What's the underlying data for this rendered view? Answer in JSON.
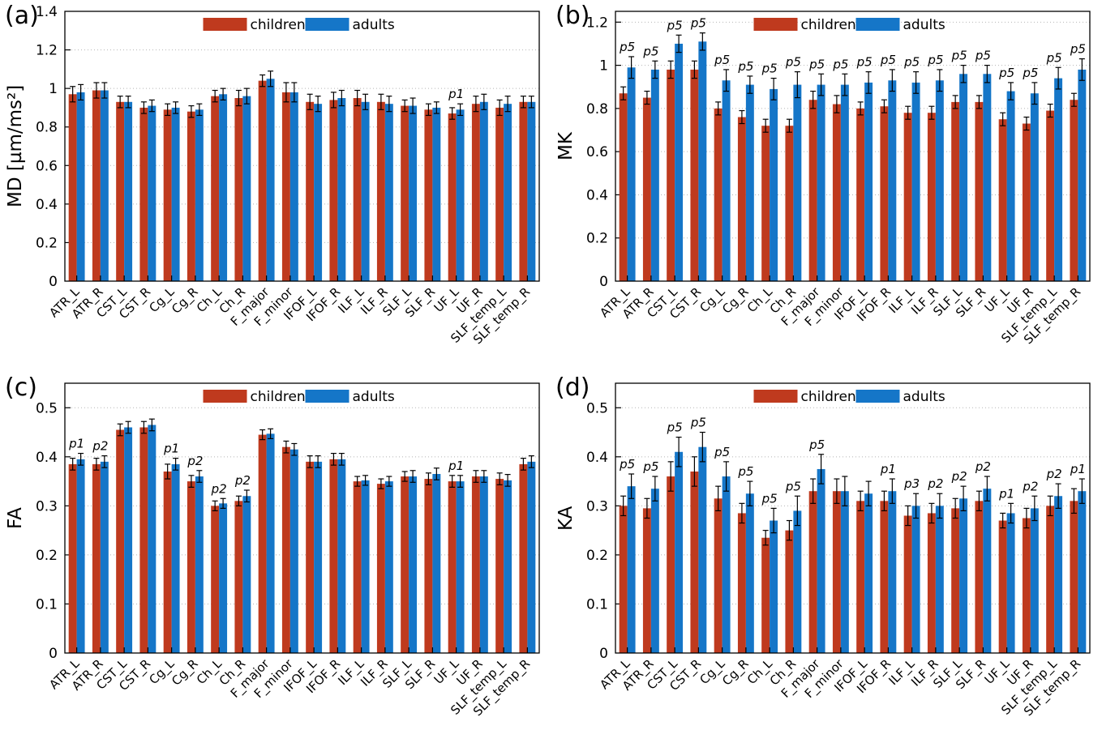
{
  "legend": {
    "children_label": "children",
    "adults_label": "adults"
  },
  "colors": {
    "children": "#bf3a1e",
    "adults": "#1576c8",
    "grid": "#b5b5b5",
    "axis": "#000000"
  },
  "categories": [
    "ATR_L",
    "ATR_R",
    "CST_L",
    "CST_R",
    "Cg_L",
    "Cg_R",
    "Ch_L",
    "Ch_R",
    "F_major",
    "F_minor",
    "IFOF_L",
    "IFOF_R",
    "ILF_L",
    "ILF_R",
    "SLF_L",
    "SLF_R",
    "UF_L",
    "UF_R",
    "SLF_temp_L",
    "SLF_temp_R"
  ],
  "chart_data": [
    {
      "id": "a",
      "panel_label": "(a)",
      "type": "bar",
      "ylabel": "MD [µm/ms²]",
      "xlabel": "",
      "ylim": [
        0,
        1.4
      ],
      "yticks": [
        0,
        0.2,
        0.4,
        0.6,
        0.8,
        1,
        1.2,
        1.4
      ],
      "grid": "dotted-horizontal",
      "legend_position": "top-center-inside",
      "series": [
        {
          "name": "children",
          "values": [
            0.97,
            0.99,
            0.93,
            0.9,
            0.89,
            0.88,
            0.96,
            0.95,
            1.04,
            0.98,
            0.93,
            0.94,
            0.95,
            0.93,
            0.91,
            0.89,
            0.87,
            0.92,
            0.9,
            0.93
          ],
          "errors": [
            0.04,
            0.04,
            0.03,
            0.03,
            0.03,
            0.03,
            0.03,
            0.04,
            0.03,
            0.05,
            0.04,
            0.04,
            0.04,
            0.04,
            0.03,
            0.03,
            0.03,
            0.04,
            0.04,
            0.03
          ]
        },
        {
          "name": "adults",
          "values": [
            0.98,
            0.99,
            0.93,
            0.91,
            0.9,
            0.89,
            0.97,
            0.96,
            1.05,
            0.98,
            0.92,
            0.95,
            0.93,
            0.92,
            0.91,
            0.9,
            0.89,
            0.93,
            0.92,
            0.93
          ],
          "errors": [
            0.04,
            0.04,
            0.03,
            0.03,
            0.03,
            0.03,
            0.03,
            0.04,
            0.04,
            0.05,
            0.04,
            0.04,
            0.04,
            0.04,
            0.04,
            0.03,
            0.03,
            0.04,
            0.04,
            0.03
          ]
        }
      ],
      "annotations": [
        "",
        "",
        "",
        "",
        "",
        "",
        "",
        "",
        "",
        "",
        "",
        "",
        "",
        "",
        "",
        "",
        "p1",
        "",
        "",
        ""
      ]
    },
    {
      "id": "b",
      "panel_label": "(b)",
      "type": "bar",
      "ylabel": "MK",
      "xlabel": "",
      "ylim": [
        0,
        1.25
      ],
      "yticks": [
        0,
        0.2,
        0.4,
        0.6,
        0.8,
        1,
        1.2
      ],
      "grid": "dotted-horizontal",
      "legend_position": "top-center-inside",
      "series": [
        {
          "name": "children",
          "values": [
            0.87,
            0.85,
            0.98,
            0.98,
            0.8,
            0.76,
            0.72,
            0.72,
            0.84,
            0.82,
            0.8,
            0.81,
            0.78,
            0.78,
            0.83,
            0.83,
            0.75,
            0.73,
            0.79,
            0.84
          ],
          "errors": [
            0.03,
            0.03,
            0.04,
            0.04,
            0.03,
            0.03,
            0.03,
            0.03,
            0.04,
            0.04,
            0.03,
            0.03,
            0.03,
            0.03,
            0.03,
            0.03,
            0.03,
            0.03,
            0.03,
            0.03
          ]
        },
        {
          "name": "adults",
          "values": [
            0.99,
            0.98,
            1.1,
            1.11,
            0.93,
            0.91,
            0.89,
            0.91,
            0.91,
            0.91,
            0.92,
            0.93,
            0.92,
            0.93,
            0.96,
            0.96,
            0.88,
            0.87,
            0.94,
            0.98
          ],
          "errors": [
            0.05,
            0.04,
            0.04,
            0.04,
            0.05,
            0.04,
            0.05,
            0.06,
            0.05,
            0.05,
            0.05,
            0.05,
            0.05,
            0.05,
            0.04,
            0.04,
            0.04,
            0.05,
            0.05,
            0.05
          ]
        }
      ],
      "annotations": [
        "p5",
        "p5",
        "p5",
        "p5",
        "p5",
        "p5",
        "p5",
        "p5",
        "p5",
        "p5",
        "p5",
        "p5",
        "p5",
        "p5",
        "p5",
        "p5",
        "p5",
        "p5",
        "p5",
        "p5"
      ]
    },
    {
      "id": "c",
      "panel_label": "(c)",
      "type": "bar",
      "ylabel": "FA",
      "xlabel": "",
      "ylim": [
        0,
        0.55
      ],
      "yticks": [
        0,
        0.1,
        0.2,
        0.3,
        0.4,
        0.5
      ],
      "grid": "dotted-horizontal",
      "legend_position": "top-center-inside",
      "series": [
        {
          "name": "children",
          "values": [
            0.385,
            0.385,
            0.455,
            0.46,
            0.37,
            0.35,
            0.3,
            0.31,
            0.445,
            0.42,
            0.39,
            0.395,
            0.35,
            0.345,
            0.36,
            0.355,
            0.35,
            0.36,
            0.355,
            0.385
          ],
          "errors": [
            0.012,
            0.012,
            0.012,
            0.012,
            0.015,
            0.012,
            0.01,
            0.01,
            0.01,
            0.012,
            0.012,
            0.012,
            0.01,
            0.01,
            0.01,
            0.012,
            0.012,
            0.012,
            0.012,
            0.012
          ]
        },
        {
          "name": "adults",
          "values": [
            0.395,
            0.39,
            0.46,
            0.465,
            0.385,
            0.36,
            0.305,
            0.32,
            0.447,
            0.415,
            0.39,
            0.395,
            0.352,
            0.35,
            0.36,
            0.365,
            0.35,
            0.36,
            0.352,
            0.39
          ],
          "errors": [
            0.012,
            0.012,
            0.012,
            0.012,
            0.012,
            0.012,
            0.01,
            0.012,
            0.01,
            0.012,
            0.012,
            0.012,
            0.01,
            0.01,
            0.012,
            0.012,
            0.012,
            0.012,
            0.012,
            0.012
          ]
        }
      ],
      "annotations": [
        "p1",
        "p2",
        "",
        "",
        "p1",
        "p2",
        "p2",
        "p2",
        "",
        "",
        "",
        "",
        "",
        "",
        "",
        "",
        "p1",
        "",
        "",
        ""
      ]
    },
    {
      "id": "d",
      "panel_label": "(d)",
      "type": "bar",
      "ylabel": "KA",
      "xlabel": "",
      "ylim": [
        0,
        0.55
      ],
      "yticks": [
        0,
        0.1,
        0.2,
        0.3,
        0.4,
        0.5
      ],
      "grid": "dotted-horizontal",
      "legend_position": "top-center-inside",
      "series": [
        {
          "name": "children",
          "values": [
            0.3,
            0.295,
            0.36,
            0.37,
            0.315,
            0.285,
            0.235,
            0.25,
            0.33,
            0.33,
            0.31,
            0.31,
            0.28,
            0.285,
            0.295,
            0.31,
            0.27,
            0.275,
            0.3,
            0.31
          ],
          "errors": [
            0.02,
            0.02,
            0.03,
            0.03,
            0.025,
            0.02,
            0.015,
            0.02,
            0.025,
            0.025,
            0.02,
            0.02,
            0.02,
            0.02,
            0.02,
            0.02,
            0.015,
            0.02,
            0.02,
            0.025
          ]
        },
        {
          "name": "adults",
          "values": [
            0.34,
            0.335,
            0.41,
            0.42,
            0.36,
            0.325,
            0.27,
            0.29,
            0.375,
            0.33,
            0.325,
            0.33,
            0.3,
            0.3,
            0.315,
            0.335,
            0.285,
            0.295,
            0.32,
            0.33
          ],
          "errors": [
            0.025,
            0.025,
            0.03,
            0.03,
            0.03,
            0.025,
            0.025,
            0.03,
            0.03,
            0.03,
            0.025,
            0.025,
            0.025,
            0.025,
            0.025,
            0.025,
            0.02,
            0.025,
            0.025,
            0.025
          ]
        }
      ],
      "annotations": [
        "p5",
        "p5",
        "p5",
        "p5",
        "p5",
        "p5",
        "p5",
        "p5",
        "p5",
        "",
        "",
        "p1",
        "p3",
        "p2",
        "p2",
        "p2",
        "p1",
        "p2",
        "p2",
        "p1"
      ]
    }
  ]
}
